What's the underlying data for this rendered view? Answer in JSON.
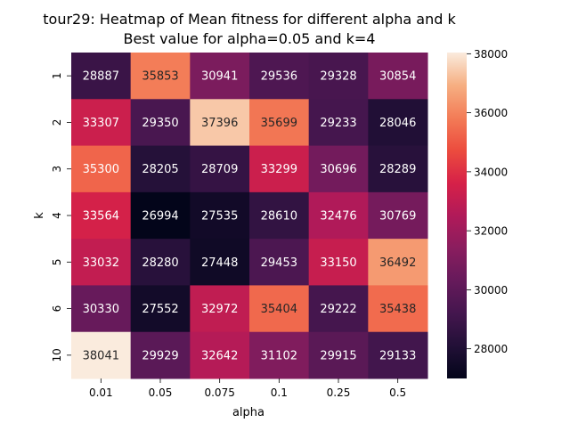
{
  "chart_data": {
    "type": "heatmap",
    "title": "tour29: Heatmap of Mean fitness for different alpha and k",
    "subtitle": "Best value for alpha=0.05 and k=4",
    "xlabel": "alpha",
    "ylabel": "k",
    "x_categories": [
      "0.01",
      "0.05",
      "0.075",
      "0.1",
      "0.25",
      "0.5"
    ],
    "y_categories": [
      "1",
      "2",
      "3",
      "4",
      "5",
      "6",
      "10"
    ],
    "values": [
      [
        28887,
        35853,
        30941,
        29536,
        29328,
        30854
      ],
      [
        33307,
        29350,
        37396,
        35699,
        29233,
        28046
      ],
      [
        35300,
        28205,
        28709,
        33299,
        30696,
        28289
      ],
      [
        33564,
        26994,
        27535,
        28610,
        32476,
        30769
      ],
      [
        33032,
        28280,
        27448,
        29453,
        33150,
        36492
      ],
      [
        30330,
        27552,
        32972,
        35404,
        29222,
        35438
      ],
      [
        38041,
        29929,
        32642,
        31102,
        29915,
        29133
      ]
    ],
    "colorbar": {
      "range": [
        26994,
        38041
      ],
      "ticks": [
        28000,
        30000,
        32000,
        34000,
        36000,
        38000
      ],
      "colormap": "rocket"
    }
  }
}
